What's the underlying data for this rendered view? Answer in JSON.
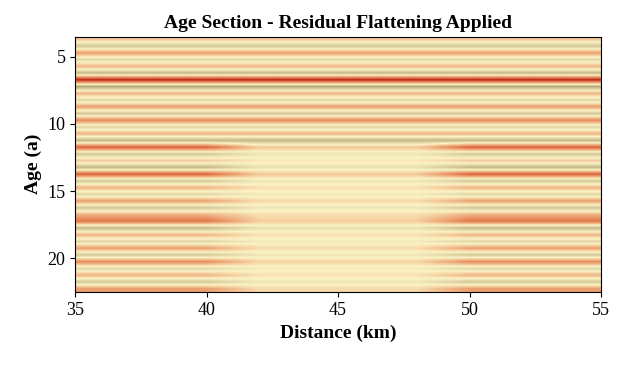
{
  "chart_data": {
    "type": "heatmap",
    "title": "Age Section - Residual Flattening Applied",
    "x_label": "Distance (km)",
    "y_label": "Age (a)",
    "xlim": [
      35,
      55
    ],
    "ylim": [
      22.5,
      3.5
    ],
    "xticks": [
      35,
      40,
      45,
      50,
      55
    ],
    "yticks": [
      5,
      10,
      15,
      20
    ],
    "cells": [
      [
        0.2,
        0.2,
        0.2,
        0.2,
        0.2,
        0.2,
        0.2,
        0.2,
        0.2,
        0.2
      ],
      [
        -0.3,
        -0.3,
        -0.3,
        -0.3,
        -0.3,
        -0.3,
        -0.3,
        -0.3,
        -0.3,
        -0.3
      ],
      [
        0.4,
        0.4,
        0.4,
        0.4,
        0.4,
        0.4,
        0.4,
        0.4,
        0.4,
        0.4
      ],
      [
        -0.2,
        -0.2,
        -0.2,
        -0.2,
        -0.2,
        -0.2,
        -0.2,
        -0.2,
        -0.2,
        -0.2
      ],
      [
        0.3,
        0.3,
        0.3,
        0.3,
        0.3,
        0.3,
        0.3,
        0.3,
        0.3,
        0.3
      ],
      [
        -0.4,
        -0.4,
        -0.4,
        -0.4,
        -0.4,
        -0.4,
        -0.4,
        -0.4,
        -0.4,
        -0.4
      ],
      [
        1.0,
        1.0,
        1.0,
        1.0,
        1.0,
        1.0,
        1.0,
        1.0,
        1.0,
        1.0
      ],
      [
        -0.5,
        -0.5,
        -0.5,
        -0.5,
        -0.5,
        -0.5,
        -0.5,
        -0.5,
        -0.5,
        -0.5
      ],
      [
        0.3,
        0.3,
        0.3,
        0.3,
        0.3,
        0.3,
        0.3,
        0.3,
        0.3,
        0.3
      ],
      [
        -0.2,
        -0.2,
        -0.2,
        -0.2,
        -0.2,
        -0.2,
        -0.2,
        -0.2,
        -0.2,
        -0.2
      ],
      [
        0.4,
        0.4,
        0.4,
        0.4,
        0.4,
        0.4,
        0.4,
        0.4,
        0.4,
        0.4
      ],
      [
        -0.3,
        -0.3,
        -0.3,
        -0.3,
        -0.3,
        -0.3,
        -0.3,
        -0.3,
        -0.3,
        -0.3
      ],
      [
        0.5,
        0.5,
        0.5,
        0.5,
        0.5,
        0.5,
        0.5,
        0.5,
        0.5,
        0.5
      ],
      [
        -0.2,
        -0.2,
        -0.2,
        -0.2,
        -0.2,
        -0.2,
        -0.2,
        -0.2,
        -0.2,
        -0.2
      ],
      [
        0.3,
        0.3,
        0.3,
        0.3,
        0.3,
        0.3,
        0.3,
        0.3,
        0.3,
        0.3
      ],
      [
        -0.4,
        -0.4,
        -0.4,
        -0.4,
        -0.4,
        -0.4,
        -0.4,
        -0.4,
        -0.4,
        -0.4
      ],
      [
        0.7,
        0.7,
        0.7,
        0.21,
        0.21,
        0.21,
        0.21,
        0.7,
        0.7,
        0.7
      ],
      [
        -0.3,
        -0.3,
        -0.3,
        -0.09,
        -0.09,
        -0.09,
        -0.09,
        -0.3,
        -0.3,
        -0.3
      ],
      [
        0.2,
        0.2,
        0.2,
        0.06,
        0.06,
        0.06,
        0.06,
        0.2,
        0.2,
        0.2
      ],
      [
        -0.4,
        -0.4,
        -0.4,
        -0.12,
        -0.12,
        -0.12,
        -0.12,
        -0.4,
        -0.4,
        -0.4
      ],
      [
        0.7,
        0.7,
        0.7,
        0.21,
        0.21,
        0.21,
        0.21,
        0.7,
        0.7,
        0.7
      ],
      [
        -0.3,
        -0.3,
        -0.3,
        -0.09,
        -0.09,
        -0.09,
        -0.09,
        -0.3,
        -0.3,
        -0.3
      ],
      [
        0.3,
        0.3,
        0.3,
        0.09,
        0.09,
        0.09,
        0.09,
        0.3,
        0.3,
        0.3
      ],
      [
        -0.2,
        -0.2,
        -0.2,
        -0.06,
        -0.06,
        -0.06,
        -0.06,
        -0.2,
        -0.2,
        -0.2
      ],
      [
        0.4,
        0.4,
        0.4,
        0.12,
        0.12,
        0.12,
        0.12,
        0.4,
        0.4,
        0.4
      ],
      [
        -0.3,
        -0.3,
        -0.3,
        -0.09,
        -0.09,
        -0.09,
        -0.09,
        -0.3,
        -0.3,
        -0.3
      ],
      [
        0.3,
        0.3,
        0.3,
        0.09,
        0.09,
        0.09,
        0.09,
        0.3,
        0.3,
        0.3
      ],
      [
        0.6,
        0.6,
        0.6,
        0.18,
        0.18,
        0.18,
        0.18,
        0.6,
        0.6,
        0.6
      ],
      [
        -0.4,
        -0.4,
        -0.4,
        -0.12,
        -0.12,
        -0.12,
        -0.12,
        -0.4,
        -0.4,
        -0.4
      ],
      [
        0.3,
        0.3,
        0.3,
        0.09,
        0.09,
        0.09,
        0.09,
        0.3,
        0.3,
        0.3
      ],
      [
        -0.2,
        -0.2,
        -0.2,
        -0.06,
        -0.06,
        -0.06,
        -0.06,
        -0.2,
        -0.2,
        -0.2
      ],
      [
        0.4,
        0.4,
        0.4,
        0.12,
        0.12,
        0.12,
        0.12,
        0.4,
        0.4,
        0.4
      ],
      [
        -0.3,
        -0.3,
        -0.3,
        -0.09,
        -0.09,
        -0.09,
        -0.09,
        -0.3,
        -0.3,
        -0.3
      ],
      [
        0.5,
        0.5,
        0.5,
        0.15,
        0.15,
        0.15,
        0.15,
        0.5,
        0.5,
        0.5
      ],
      [
        -0.2,
        -0.2,
        -0.2,
        -0.06,
        -0.06,
        -0.06,
        -0.06,
        -0.2,
        -0.2,
        -0.2
      ],
      [
        0.3,
        0.3,
        0.3,
        0.09,
        0.09,
        0.09,
        0.09,
        0.3,
        0.3,
        0.3
      ],
      [
        -0.3,
        -0.3,
        -0.3,
        -0.09,
        -0.09,
        -0.09,
        -0.09,
        -0.3,
        -0.3,
        -0.3
      ],
      [
        0.4,
        0.4,
        0.4,
        0.12,
        0.12,
        0.12,
        0.12,
        0.4,
        0.4,
        0.4
      ]
    ]
  }
}
